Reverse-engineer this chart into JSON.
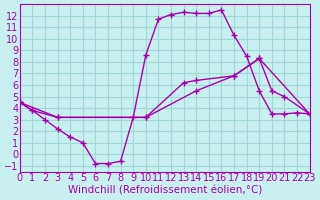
{
  "background_color": "#c8f0f0",
  "grid_color": "#a0d8d8",
  "line_color": "#aa00aa",
  "xlim": [
    0,
    23
  ],
  "ylim": [
    -1.5,
    13
  ],
  "xticks": [
    0,
    1,
    2,
    3,
    4,
    5,
    6,
    7,
    8,
    9,
    10,
    11,
    12,
    13,
    14,
    15,
    16,
    17,
    18,
    19,
    20,
    21,
    22,
    23
  ],
  "yticks": [
    -1,
    0,
    1,
    2,
    3,
    4,
    5,
    6,
    7,
    8,
    9,
    10,
    11,
    12
  ],
  "xlabel": "Windchill (Refroidissement éolien,°C)",
  "line1_x": [
    0,
    1,
    2,
    3,
    4,
    5,
    6,
    7,
    8,
    9,
    10,
    11,
    12,
    13,
    14,
    15,
    16,
    17,
    18,
    19,
    20,
    21,
    22,
    23
  ],
  "line1_y": [
    4.5,
    3.8,
    3.0,
    2.2,
    1.5,
    1.0,
    -0.8,
    -0.8,
    -0.6,
    3.2,
    8.6,
    11.7,
    12.1,
    12.3,
    12.2,
    12.2,
    12.5,
    10.3,
    8.5,
    5.5,
    3.5,
    3.5,
    3.6,
    3.5
  ],
  "line2_x": [
    0,
    1,
    3,
    10,
    13,
    14,
    17,
    19,
    20,
    21,
    23
  ],
  "line2_y": [
    4.5,
    3.8,
    3.2,
    3.2,
    6.2,
    6.4,
    6.8,
    8.3,
    5.5,
    5.0,
    3.5
  ],
  "line3_x": [
    0,
    3,
    10,
    14,
    17,
    19,
    23
  ],
  "line3_y": [
    4.5,
    3.2,
    3.2,
    5.5,
    6.8,
    8.3,
    3.5
  ],
  "tick_fontsize": 7,
  "label_fontsize": 7.5
}
